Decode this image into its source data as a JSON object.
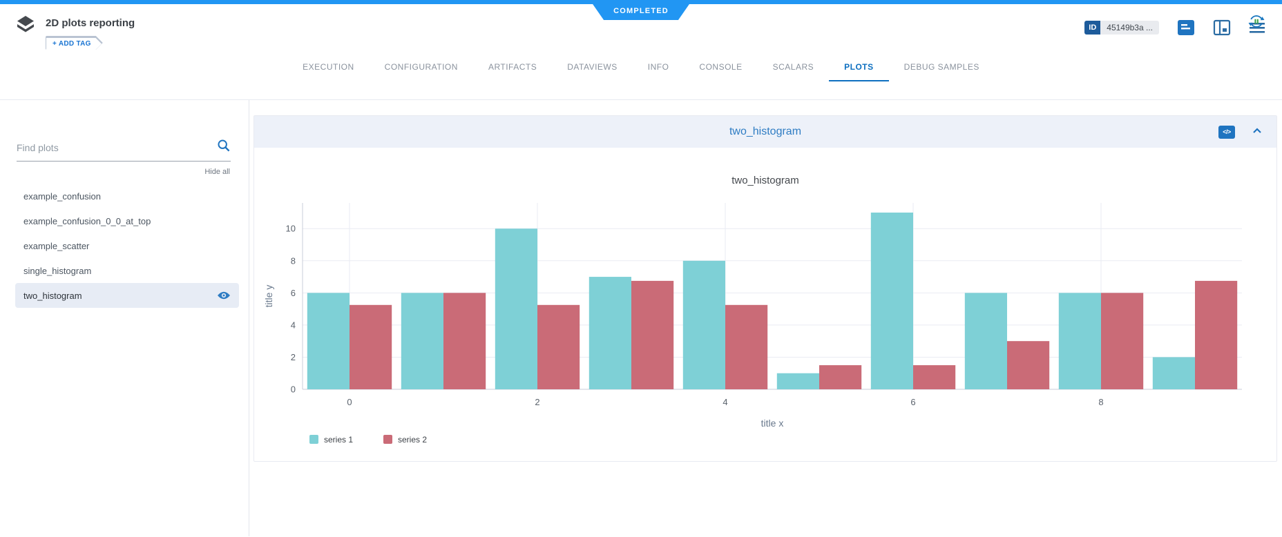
{
  "status_banner": {
    "label": "COMPLETED"
  },
  "header": {
    "title": "2D plots reporting",
    "add_tag_label": "+ ADD TAG",
    "id_label": "ID",
    "id_value": "45149b3a ..."
  },
  "tabs": {
    "items": [
      {
        "label": "EXECUTION"
      },
      {
        "label": "CONFIGURATION"
      },
      {
        "label": "ARTIFACTS"
      },
      {
        "label": "DATAVIEWS"
      },
      {
        "label": "INFO"
      },
      {
        "label": "CONSOLE"
      },
      {
        "label": "SCALARS"
      },
      {
        "label": "PLOTS"
      },
      {
        "label": "DEBUG SAMPLES"
      }
    ],
    "active": "PLOTS"
  },
  "sidebar": {
    "search_placeholder": "Find plots",
    "hide_all_label": "Hide all",
    "plots": [
      {
        "label": "example_confusion",
        "selected": false
      },
      {
        "label": "example_confusion_0_0_at_top",
        "selected": false
      },
      {
        "label": "example_scatter",
        "selected": false
      },
      {
        "label": "single_histogram",
        "selected": false
      },
      {
        "label": "two_histogram",
        "selected": true
      }
    ]
  },
  "plot_panel": {
    "title": "two_histogram",
    "code_button": "</>"
  },
  "colors": {
    "accent_blue": "#2196f3",
    "active_tab_blue": "#0d6fc0",
    "icon_blue": "#1f74c0",
    "dark_blue": "#1d5b9b",
    "panel_header_bg": "#edf1f9",
    "series1": "#7ed0d6",
    "series2": "#ca6b77",
    "refresh_green": "#3da24a"
  },
  "chart_data": {
    "type": "bar",
    "title": "two_histogram",
    "xlabel": "title x",
    "ylabel": "title y",
    "x": [
      0,
      1,
      2,
      3,
      4,
      5,
      6,
      7,
      8,
      9
    ],
    "series": [
      {
        "name": "series 1",
        "color": "#7ed0d6",
        "values": [
          6,
          6,
          10,
          7,
          8,
          1,
          11,
          6,
          6,
          2
        ]
      },
      {
        "name": "series 2",
        "color": "#ca6b77",
        "values": [
          5.25,
          6,
          5.25,
          6.75,
          5.25,
          1.5,
          1.5,
          3,
          6,
          6.75
        ]
      }
    ],
    "ylim": [
      0,
      11.6
    ],
    "yticks": [
      0,
      2,
      4,
      6,
      8,
      10
    ],
    "xticks": [
      0,
      2,
      4,
      6,
      8
    ],
    "grid": true,
    "legend_position": "bottom-left"
  }
}
